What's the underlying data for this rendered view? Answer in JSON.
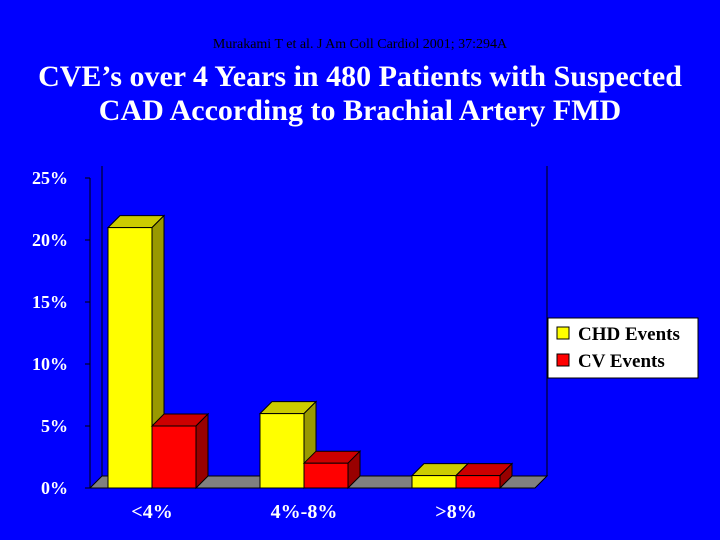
{
  "citation": "Murakami T et al.  J Am Coll Cardiol 2001; 37:294A",
  "title_line1": "CVE’s over 4 Years in 480 Patients with Suspected",
  "title_line2": "CAD According to Brachial Artery FMD",
  "colors": {
    "background": "#0000ff",
    "chd_front": "#ffff00",
    "chd_side": "#999900",
    "chd_top": "#cccc00",
    "cv_front": "#ff0000",
    "cv_side": "#990000",
    "cv_top": "#cc0000",
    "floor": "#808080"
  },
  "chart_data": {
    "type": "bar",
    "categories": [
      "<4%",
      "4%-8%",
      ">8%"
    ],
    "series": [
      {
        "name": "CHD Events",
        "values": [
          21,
          6,
          1
        ]
      },
      {
        "name": "CV Events",
        "values": [
          5,
          2,
          1
        ]
      }
    ],
    "ylim": [
      0,
      25
    ],
    "yticks": [
      "0%",
      "5%",
      "10%",
      "15%",
      "20%",
      "25%"
    ],
    "ytick_values": [
      0,
      5,
      10,
      15,
      20,
      25
    ],
    "grid": false,
    "legend_position": "right"
  }
}
